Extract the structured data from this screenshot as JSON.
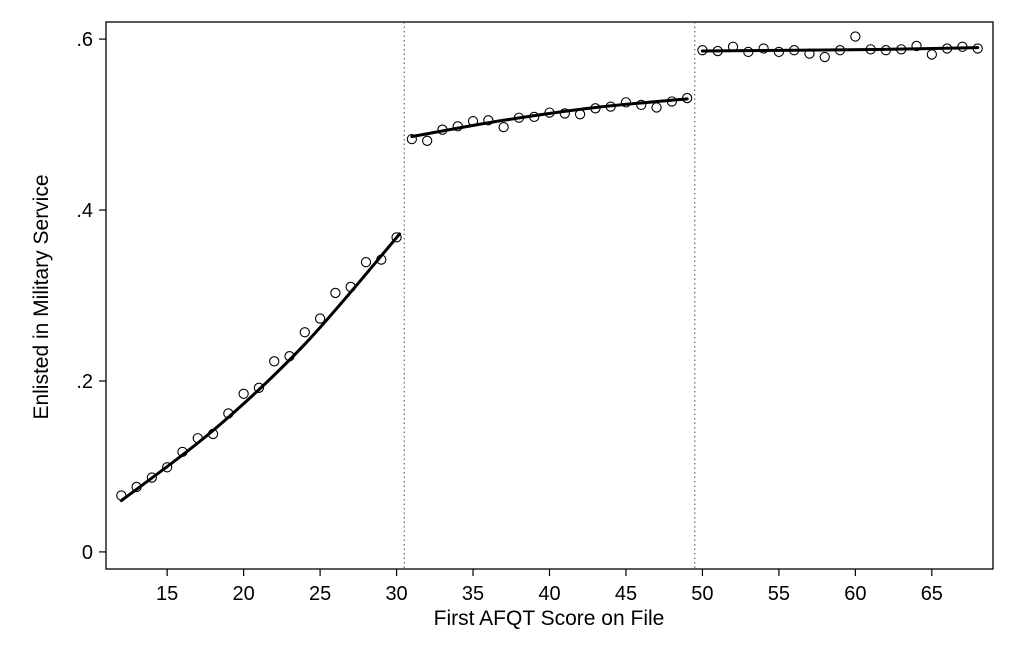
{
  "chart_data": {
    "type": "scatter",
    "title": "",
    "xlabel": "First AFQT Score on File",
    "ylabel": "Enlisted in Military Service",
    "xlim": [
      11,
      69
    ],
    "ylim": [
      -0.02,
      0.62
    ],
    "grid": false,
    "legend": "none",
    "x_ticks": [
      15,
      20,
      25,
      30,
      35,
      40,
      45,
      50,
      55,
      60,
      65
    ],
    "x_tick_labels": [
      "15",
      "20",
      "25",
      "30",
      "35",
      "40",
      "45",
      "50",
      "55",
      "60",
      "65"
    ],
    "y_ticks": [
      0,
      0.2,
      0.4,
      0.6
    ],
    "y_tick_labels": [
      "0",
      ".2",
      ".4",
      ".6"
    ],
    "cutoffs": [
      30.5,
      49.5
    ],
    "series": [
      {
        "kind": "points",
        "x": [
          12,
          13,
          14,
          15,
          16,
          17,
          18,
          19,
          20,
          21,
          22,
          23,
          24,
          25,
          26,
          27,
          28,
          29,
          30,
          31,
          32,
          33,
          34,
          35,
          36,
          37,
          38,
          39,
          40,
          41,
          42,
          43,
          44,
          45,
          46,
          47,
          48,
          49,
          50,
          51,
          52,
          53,
          54,
          55,
          56,
          57,
          58,
          59,
          60,
          61,
          62,
          63,
          64,
          65,
          66,
          67,
          68
        ],
        "y": [
          0.066,
          0.076,
          0.087,
          0.099,
          0.117,
          0.133,
          0.138,
          0.162,
          0.185,
          0.192,
          0.223,
          0.229,
          0.257,
          0.273,
          0.303,
          0.31,
          0.339,
          0.342,
          0.368,
          0.483,
          0.481,
          0.494,
          0.498,
          0.504,
          0.505,
          0.497,
          0.508,
          0.509,
          0.514,
          0.513,
          0.512,
          0.519,
          0.521,
          0.526,
          0.523,
          0.52,
          0.527,
          0.531,
          0.587,
          0.586,
          0.591,
          0.585,
          0.589,
          0.585,
          0.587,
          0.583,
          0.579,
          0.587,
          0.603,
          0.588,
          0.587,
          0.588,
          0.592,
          0.582,
          0.589,
          0.591,
          0.589
        ]
      },
      {
        "kind": "fit",
        "x": [
          12,
          18,
          24,
          30.2
        ],
        "y": [
          0.06,
          0.142,
          0.243,
          0.372
        ]
      },
      {
        "kind": "fit",
        "x": [
          31,
          37,
          43,
          49
        ],
        "y": [
          0.486,
          0.505,
          0.52,
          0.53
        ]
      },
      {
        "kind": "fit",
        "x": [
          50,
          56,
          62,
          68
        ],
        "y": [
          0.586,
          0.587,
          0.588,
          0.59
        ]
      }
    ]
  }
}
